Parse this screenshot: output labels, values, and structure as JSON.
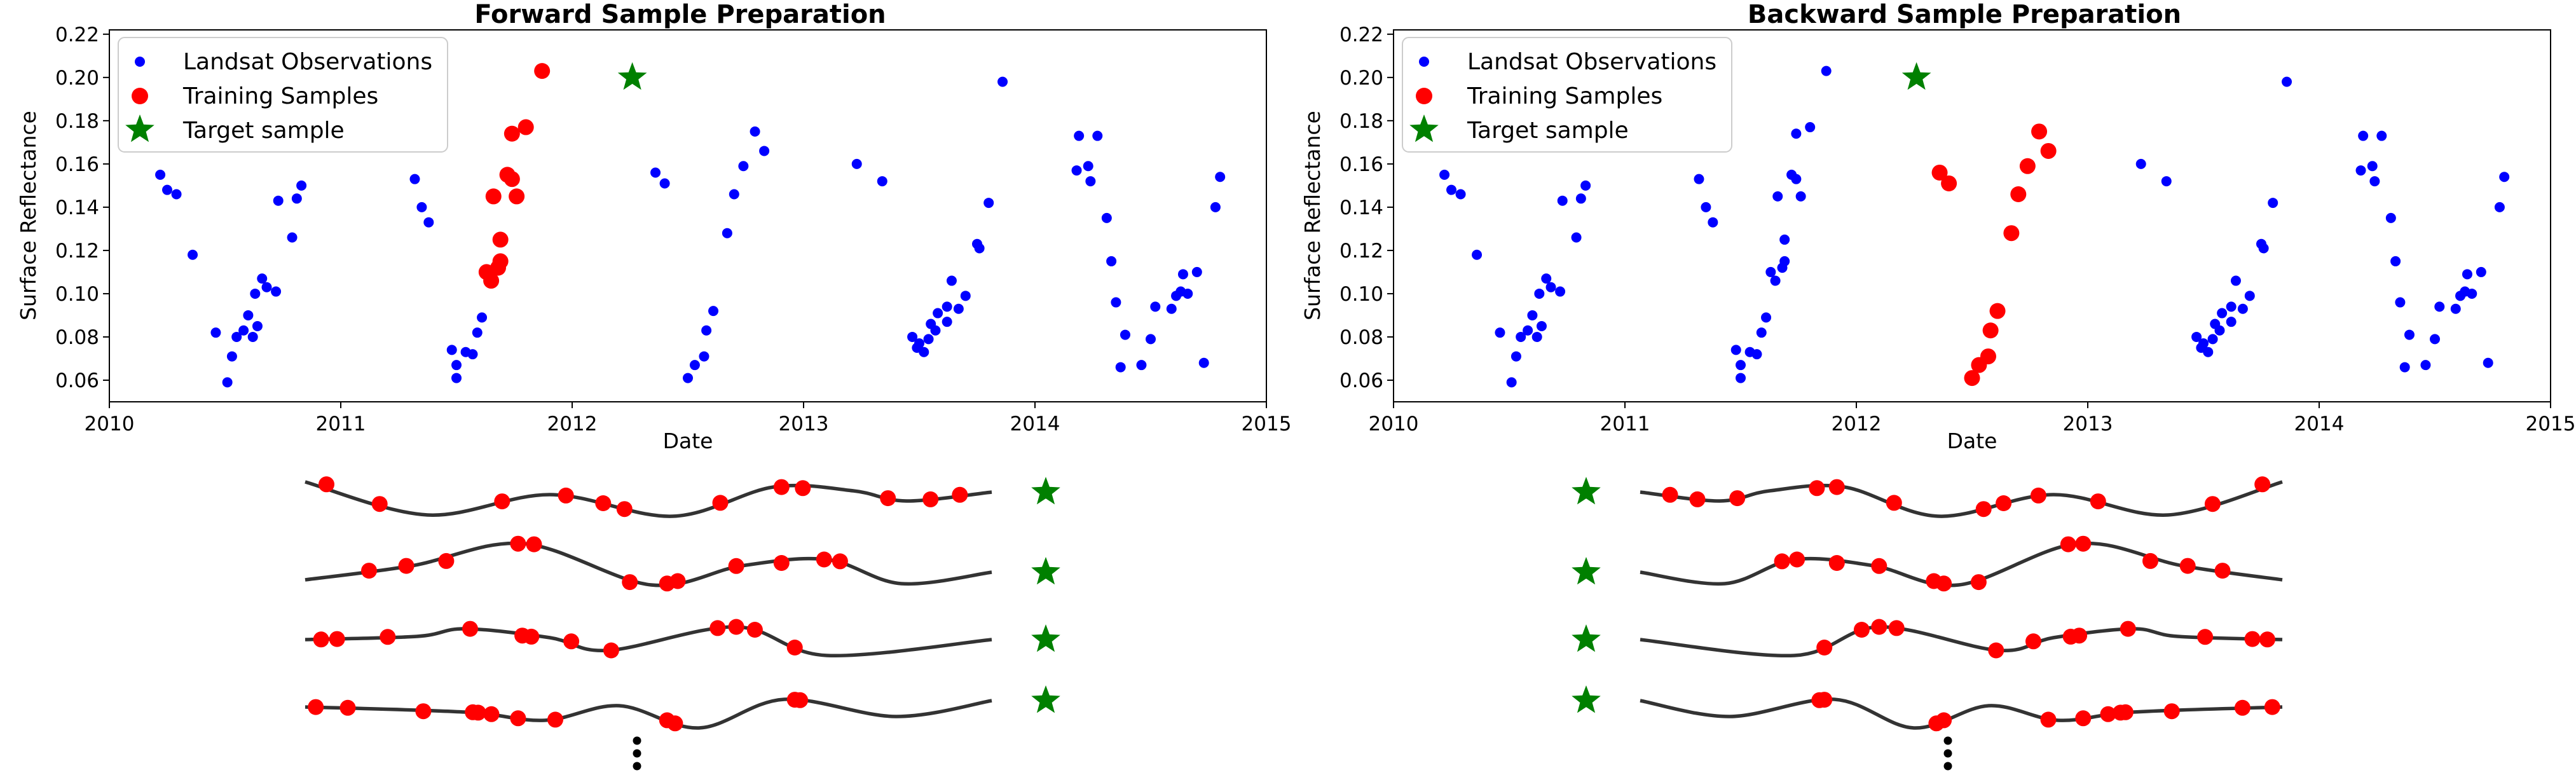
{
  "colors": {
    "observations": "#0000ff",
    "training": "#ff0000",
    "target": "#008000",
    "curve": "#333333",
    "dots": "#000000"
  },
  "chart_data": [
    {
      "type": "scatter",
      "title": "Forward Sample Preparation",
      "xlabel": "Date",
      "ylabel": "Surface Reflectance",
      "xlim": [
        2010.0,
        2015.0
      ],
      "ylim": [
        0.05,
        0.222
      ],
      "xticks": [
        "2010",
        "2011",
        "2012",
        "2013",
        "2014",
        "2015"
      ],
      "yticks": [
        "0.06",
        "0.08",
        "0.10",
        "0.12",
        "0.14",
        "0.16",
        "0.18",
        "0.20",
        "0.22"
      ],
      "legend": {
        "placement": "top-left",
        "entries": [
          "Landsat Observations",
          "Training Samples",
          "Target sample"
        ]
      },
      "series": [
        {
          "name": "Landsat Observations",
          "marker": "dot",
          "points": [
            [
              2010.22,
              0.155
            ],
            [
              2010.25,
              0.148
            ],
            [
              2010.29,
              0.146
            ],
            [
              2010.36,
              0.118
            ],
            [
              2010.46,
              0.082
            ],
            [
              2010.51,
              0.059
            ],
            [
              2010.53,
              0.071
            ],
            [
              2010.55,
              0.08
            ],
            [
              2010.58,
              0.083
            ],
            [
              2010.6,
              0.09
            ],
            [
              2010.62,
              0.08
            ],
            [
              2010.64,
              0.085
            ],
            [
              2010.63,
              0.1
            ],
            [
              2010.66,
              0.107
            ],
            [
              2010.68,
              0.103
            ],
            [
              2010.72,
              0.101
            ],
            [
              2010.73,
              0.143
            ],
            [
              2010.79,
              0.126
            ],
            [
              2010.81,
              0.144
            ],
            [
              2010.83,
              0.15
            ],
            [
              2011.32,
              0.153
            ],
            [
              2011.35,
              0.14
            ],
            [
              2011.38,
              0.133
            ],
            [
              2011.48,
              0.074
            ],
            [
              2011.5,
              0.067
            ],
            [
              2011.5,
              0.061
            ],
            [
              2011.54,
              0.073
            ],
            [
              2011.57,
              0.072
            ],
            [
              2011.59,
              0.082
            ],
            [
              2011.61,
              0.089
            ],
            [
              2012.36,
              0.156
            ],
            [
              2012.4,
              0.151
            ],
            [
              2012.5,
              0.061
            ],
            [
              2012.53,
              0.067
            ],
            [
              2012.57,
              0.071
            ],
            [
              2012.58,
              0.083
            ],
            [
              2012.61,
              0.092
            ],
            [
              2012.67,
              0.128
            ],
            [
              2012.7,
              0.146
            ],
            [
              2012.74,
              0.159
            ],
            [
              2012.79,
              0.175
            ],
            [
              2012.83,
              0.166
            ],
            [
              2013.23,
              0.16
            ],
            [
              2013.34,
              0.152
            ],
            [
              2013.47,
              0.08
            ],
            [
              2013.49,
              0.075
            ],
            [
              2013.5,
              0.077
            ],
            [
              2013.52,
              0.073
            ],
            [
              2013.54,
              0.079
            ],
            [
              2013.55,
              0.086
            ],
            [
              2013.57,
              0.083
            ],
            [
              2013.58,
              0.091
            ],
            [
              2013.62,
              0.087
            ],
            [
              2013.62,
              0.094
            ],
            [
              2013.64,
              0.106
            ],
            [
              2013.67,
              0.093
            ],
            [
              2013.7,
              0.099
            ],
            [
              2013.75,
              0.123
            ],
            [
              2013.76,
              0.121
            ],
            [
              2013.8,
              0.142
            ],
            [
              2013.86,
              0.198
            ],
            [
              2014.19,
              0.173
            ],
            [
              2014.18,
              0.157
            ],
            [
              2014.23,
              0.159
            ],
            [
              2014.24,
              0.152
            ],
            [
              2014.27,
              0.173
            ],
            [
              2014.31,
              0.135
            ],
            [
              2014.33,
              0.115
            ],
            [
              2014.35,
              0.096
            ],
            [
              2014.37,
              0.066
            ],
            [
              2014.39,
              0.081
            ],
            [
              2014.46,
              0.067
            ],
            [
              2014.5,
              0.079
            ],
            [
              2014.52,
              0.094
            ],
            [
              2014.59,
              0.093
            ],
            [
              2014.61,
              0.099
            ],
            [
              2014.63,
              0.101
            ],
            [
              2014.64,
              0.109
            ],
            [
              2014.66,
              0.1
            ],
            [
              2014.7,
              0.11
            ],
            [
              2014.73,
              0.068
            ],
            [
              2014.78,
              0.14
            ],
            [
              2014.8,
              0.154
            ]
          ]
        },
        {
          "name": "Training Samples",
          "marker": "circle",
          "points": [
            [
              2011.63,
              0.11
            ],
            [
              2011.65,
              0.106
            ],
            [
              2011.66,
              0.145
            ],
            [
              2011.68,
              0.112
            ],
            [
              2011.69,
              0.115
            ],
            [
              2011.69,
              0.125
            ],
            [
              2011.72,
              0.155
            ],
            [
              2011.74,
              0.153
            ],
            [
              2011.74,
              0.174
            ],
            [
              2011.76,
              0.145
            ],
            [
              2011.8,
              0.177
            ],
            [
              2011.87,
              0.203
            ]
          ]
        },
        {
          "name": "Target sample",
          "marker": "star",
          "points": [
            [
              2012.26,
              0.2
            ]
          ]
        }
      ]
    },
    {
      "type": "scatter",
      "title": "Backward Sample Preparation",
      "xlabel": "Date",
      "ylabel": "Surface Reflectance",
      "xlim": [
        2010.0,
        2015.0
      ],
      "ylim": [
        0.05,
        0.222
      ],
      "xticks": [
        "2010",
        "2011",
        "2012",
        "2013",
        "2014",
        "2015"
      ],
      "yticks": [
        "0.06",
        "0.08",
        "0.10",
        "0.12",
        "0.14",
        "0.16",
        "0.18",
        "0.20",
        "0.22"
      ],
      "legend": {
        "placement": "top-left",
        "entries": [
          "Landsat Observations",
          "Training Samples",
          "Target sample"
        ]
      },
      "series": [
        {
          "name": "Landsat Observations",
          "marker": "dot",
          "points": [
            [
              2010.22,
              0.155
            ],
            [
              2010.25,
              0.148
            ],
            [
              2010.29,
              0.146
            ],
            [
              2010.36,
              0.118
            ],
            [
              2010.46,
              0.082
            ],
            [
              2010.51,
              0.059
            ],
            [
              2010.53,
              0.071
            ],
            [
              2010.55,
              0.08
            ],
            [
              2010.58,
              0.083
            ],
            [
              2010.6,
              0.09
            ],
            [
              2010.62,
              0.08
            ],
            [
              2010.64,
              0.085
            ],
            [
              2010.63,
              0.1
            ],
            [
              2010.66,
              0.107
            ],
            [
              2010.68,
              0.103
            ],
            [
              2010.72,
              0.101
            ],
            [
              2010.73,
              0.143
            ],
            [
              2010.79,
              0.126
            ],
            [
              2010.81,
              0.144
            ],
            [
              2010.83,
              0.15
            ],
            [
              2011.32,
              0.153
            ],
            [
              2011.35,
              0.14
            ],
            [
              2011.38,
              0.133
            ],
            [
              2011.48,
              0.074
            ],
            [
              2011.5,
              0.067
            ],
            [
              2011.5,
              0.061
            ],
            [
              2011.54,
              0.073
            ],
            [
              2011.57,
              0.072
            ],
            [
              2011.59,
              0.082
            ],
            [
              2011.61,
              0.089
            ],
            [
              2011.63,
              0.11
            ],
            [
              2011.65,
              0.106
            ],
            [
              2011.66,
              0.145
            ],
            [
              2011.68,
              0.112
            ],
            [
              2011.69,
              0.115
            ],
            [
              2011.69,
              0.125
            ],
            [
              2011.72,
              0.155
            ],
            [
              2011.74,
              0.153
            ],
            [
              2011.74,
              0.174
            ],
            [
              2011.76,
              0.145
            ],
            [
              2011.8,
              0.177
            ],
            [
              2011.87,
              0.203
            ],
            [
              2013.23,
              0.16
            ],
            [
              2013.34,
              0.152
            ],
            [
              2013.47,
              0.08
            ],
            [
              2013.49,
              0.075
            ],
            [
              2013.5,
              0.077
            ],
            [
              2013.52,
              0.073
            ],
            [
              2013.54,
              0.079
            ],
            [
              2013.55,
              0.086
            ],
            [
              2013.57,
              0.083
            ],
            [
              2013.58,
              0.091
            ],
            [
              2013.62,
              0.087
            ],
            [
              2013.62,
              0.094
            ],
            [
              2013.64,
              0.106
            ],
            [
              2013.67,
              0.093
            ],
            [
              2013.7,
              0.099
            ],
            [
              2013.75,
              0.123
            ],
            [
              2013.76,
              0.121
            ],
            [
              2013.8,
              0.142
            ],
            [
              2013.86,
              0.198
            ],
            [
              2014.19,
              0.173
            ],
            [
              2014.18,
              0.157
            ],
            [
              2014.23,
              0.159
            ],
            [
              2014.24,
              0.152
            ],
            [
              2014.27,
              0.173
            ],
            [
              2014.31,
              0.135
            ],
            [
              2014.33,
              0.115
            ],
            [
              2014.35,
              0.096
            ],
            [
              2014.37,
              0.066
            ],
            [
              2014.39,
              0.081
            ],
            [
              2014.46,
              0.067
            ],
            [
              2014.5,
              0.079
            ],
            [
              2014.52,
              0.094
            ],
            [
              2014.59,
              0.093
            ],
            [
              2014.61,
              0.099
            ],
            [
              2014.63,
              0.101
            ],
            [
              2014.64,
              0.109
            ],
            [
              2014.66,
              0.1
            ],
            [
              2014.7,
              0.11
            ],
            [
              2014.73,
              0.068
            ],
            [
              2014.78,
              0.14
            ],
            [
              2014.8,
              0.154
            ]
          ]
        },
        {
          "name": "Training Samples",
          "marker": "circle",
          "points": [
            [
              2012.36,
              0.156
            ],
            [
              2012.4,
              0.151
            ],
            [
              2012.5,
              0.061
            ],
            [
              2012.53,
              0.067
            ],
            [
              2012.57,
              0.071
            ],
            [
              2012.58,
              0.083
            ],
            [
              2012.61,
              0.092
            ],
            [
              2012.67,
              0.128
            ],
            [
              2012.7,
              0.146
            ],
            [
              2012.74,
              0.159
            ],
            [
              2012.79,
              0.175
            ],
            [
              2012.83,
              0.166
            ]
          ]
        },
        {
          "name": "Target sample",
          "marker": "star",
          "points": [
            [
              2012.26,
              0.2
            ]
          ]
        }
      ]
    }
  ]
}
